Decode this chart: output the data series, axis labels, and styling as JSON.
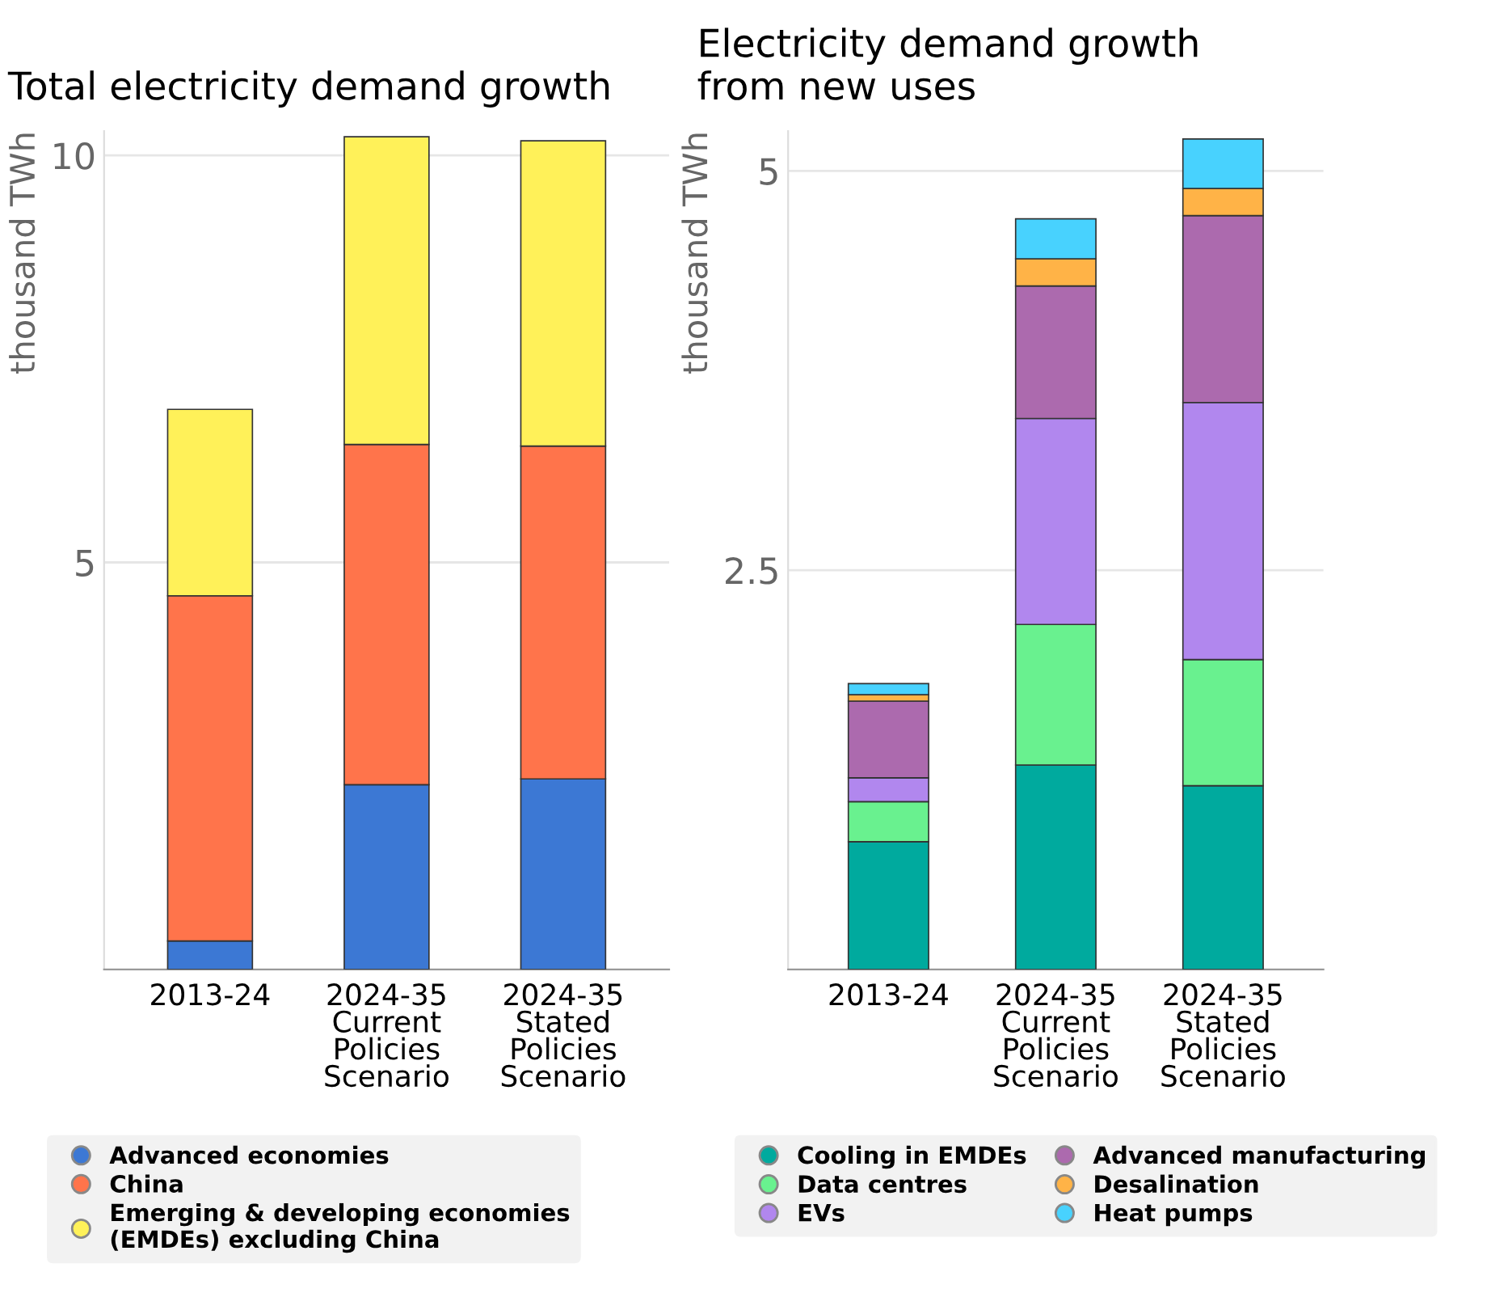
{
  "chart_data": [
    {
      "type": "bar",
      "title": "Total electricity demand growth",
      "ylabel": "thousand TWh",
      "stacked": true,
      "categories": [
        "2013-24",
        "2024-35\nCurrent\nPolicies\nScenario",
        "2024-35\nStated\nPolicies\nScenario"
      ],
      "ylim": [
        0,
        10.3
      ],
      "yticks": [
        5,
        10
      ],
      "grid": "y",
      "legend": "bottom",
      "series": [
        {
          "name": "Advanced economies",
          "color": "#3c78d4",
          "values": [
            0.35,
            2.27,
            2.34
          ]
        },
        {
          "name": "China",
          "color": "#ff744b",
          "values": [
            4.24,
            4.18,
            4.09
          ]
        },
        {
          "name": "Emerging & developing economies\n(EMDEs) excluding China",
          "color": "#fff159",
          "values": [
            2.29,
            3.78,
            3.75
          ]
        }
      ]
    },
    {
      "type": "bar",
      "title": "Electricity demand growth\nfrom new uses",
      "ylabel": "thousand TWh",
      "stacked": true,
      "categories": [
        "2013-24",
        "2024-35\nCurrent\nPolicies\nScenario",
        "2024-35\nStated\nPolicies\nScenario"
      ],
      "ylim": [
        0,
        5.25
      ],
      "yticks": [
        2.5,
        5
      ],
      "grid": "y",
      "legend": "bottom",
      "series": [
        {
          "name": "Cooling in EMDEs",
          "color": "#00aa9e",
          "values": [
            0.8,
            1.28,
            1.15
          ]
        },
        {
          "name": "Data centres",
          "color": "#69f18f",
          "values": [
            0.25,
            0.88,
            0.79
          ]
        },
        {
          "name": "EVs",
          "color": "#b187ee",
          "values": [
            0.15,
            1.29,
            1.61
          ]
        },
        {
          "name": "Advanced manufacturing",
          "color": "#ac6aae",
          "values": [
            0.48,
            0.83,
            1.17
          ]
        },
        {
          "name": "Desalination",
          "color": "#ffb347",
          "values": [
            0.04,
            0.17,
            0.17
          ]
        },
        {
          "name": "Heat pumps",
          "color": "#48d2fe",
          "values": [
            0.07,
            0.25,
            0.31
          ]
        }
      ]
    }
  ]
}
